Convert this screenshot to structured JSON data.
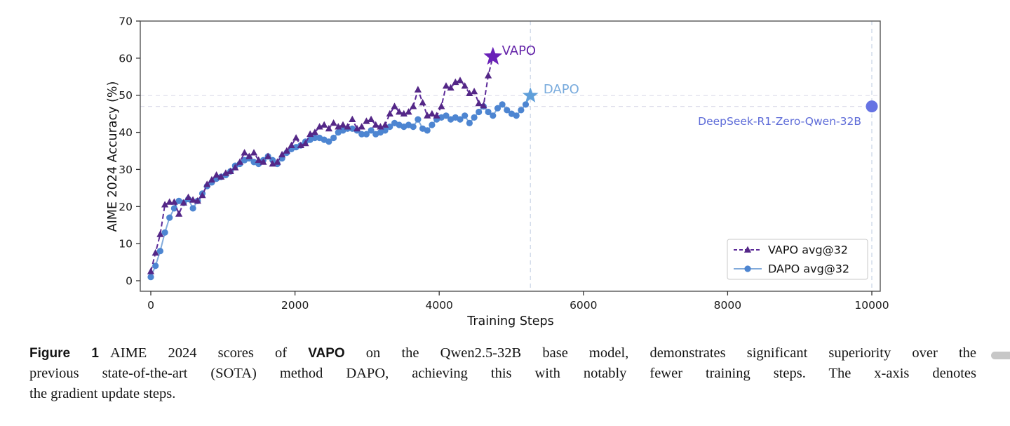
{
  "figure": {
    "caption": {
      "label": "Figure 1",
      "line1_pre": "AIME 2024 scores of ",
      "line1_bold": "VAPO",
      "line1_post": " on the Qwen2.5-32B base model, demonstrates significant superiority over the",
      "line2": "previous state-of-the-art (SOTA) method DAPO, achieving this with notably fewer training steps. The x-axis denotes",
      "line3": "the gradient update steps."
    }
  },
  "chart_data": {
    "type": "line",
    "title": "",
    "xlabel": "Training Steps",
    "ylabel": "AIME 2024 Accuracy (%)",
    "xlim": [
      -146,
      10117
    ],
    "ylim": [
      -2.84,
      70
    ],
    "xticks": [
      0,
      2000,
      4000,
      6000,
      8000,
      10000
    ],
    "yticks": [
      0,
      10,
      20,
      30,
      40,
      50,
      60,
      70
    ],
    "grid": false,
    "colors": {
      "guide_h": "#dcdcea",
      "guide_v": "#c9d4e6",
      "spine": "#555555",
      "tick_label": "#1a1a1a"
    },
    "legend": {
      "position": "lower right",
      "entries": [
        "VAPO avg@32",
        "DAPO avg@32"
      ]
    },
    "series": [
      {
        "id": "dapo",
        "name": "DAPO avg@32",
        "marker": "circle",
        "dashed": false,
        "color": "#4d85d1",
        "line_color": "#82abdb",
        "star": {
          "x": 5265,
          "y": 49.9,
          "size": 12,
          "color": "#5f9fda"
        },
        "points": [
          [
            0,
            1
          ],
          [
            65,
            4
          ],
          [
            130,
            8
          ],
          [
            195,
            13
          ],
          [
            260,
            17
          ],
          [
            325,
            19.5
          ],
          [
            390,
            21.5
          ],
          [
            455,
            21
          ],
          [
            520,
            22
          ],
          [
            585,
            19.5
          ],
          [
            650,
            21.5
          ],
          [
            715,
            23.5
          ],
          [
            780,
            25.5
          ],
          [
            845,
            26.5
          ],
          [
            910,
            27.5
          ],
          [
            975,
            28
          ],
          [
            1040,
            28.5
          ],
          [
            1105,
            29.5
          ],
          [
            1170,
            31
          ],
          [
            1235,
            31.5
          ],
          [
            1300,
            32.5
          ],
          [
            1365,
            33
          ],
          [
            1430,
            32
          ],
          [
            1495,
            31.5
          ],
          [
            1560,
            32.5
          ],
          [
            1625,
            33.5
          ],
          [
            1690,
            32.5
          ],
          [
            1755,
            31.5
          ],
          [
            1820,
            33
          ],
          [
            1885,
            34.5
          ],
          [
            1950,
            35.5
          ],
          [
            2015,
            36
          ],
          [
            2080,
            36.5
          ],
          [
            2145,
            37.5
          ],
          [
            2210,
            38
          ],
          [
            2275,
            38.5
          ],
          [
            2340,
            38.5
          ],
          [
            2405,
            38
          ],
          [
            2470,
            37.5
          ],
          [
            2535,
            38.5
          ],
          [
            2600,
            40
          ],
          [
            2665,
            40.5
          ],
          [
            2730,
            41
          ],
          [
            2795,
            41
          ],
          [
            2860,
            40.5
          ],
          [
            2925,
            39.5
          ],
          [
            2990,
            39.5
          ],
          [
            3055,
            40.5
          ],
          [
            3120,
            39.5
          ],
          [
            3185,
            40
          ],
          [
            3250,
            40.5
          ],
          [
            3315,
            41.5
          ],
          [
            3380,
            42.5
          ],
          [
            3445,
            42
          ],
          [
            3510,
            41.5
          ],
          [
            3575,
            42
          ],
          [
            3640,
            41.5
          ],
          [
            3705,
            43.5
          ],
          [
            3770,
            41
          ],
          [
            3835,
            40.5
          ],
          [
            3900,
            42
          ],
          [
            3965,
            43.5
          ],
          [
            4030,
            44
          ],
          [
            4095,
            44.5
          ],
          [
            4160,
            43.5
          ],
          [
            4225,
            44
          ],
          [
            4290,
            43.5
          ],
          [
            4355,
            44.5
          ],
          [
            4420,
            42.5
          ],
          [
            4485,
            44
          ],
          [
            4550,
            45.5
          ],
          [
            4615,
            47
          ],
          [
            4680,
            45.5
          ],
          [
            4745,
            44.5
          ],
          [
            4810,
            46.5
          ],
          [
            4875,
            47.5
          ],
          [
            4940,
            46
          ],
          [
            5005,
            45
          ],
          [
            5070,
            44.5
          ],
          [
            5135,
            46
          ],
          [
            5200,
            47.5
          ]
        ]
      },
      {
        "id": "vapo",
        "name": "VAPO avg@32",
        "marker": "triangle",
        "dashed": true,
        "color": "#542787",
        "line_color": "#5c2b99",
        "star": {
          "x": 4745,
          "y": 60.4,
          "size": 14,
          "color": "#6a22b8"
        },
        "points": [
          [
            0,
            2.5
          ],
          [
            65,
            7.5
          ],
          [
            130,
            12.5
          ],
          [
            195,
            20.5
          ],
          [
            260,
            21.2
          ],
          [
            325,
            21.2
          ],
          [
            390,
            18
          ],
          [
            455,
            21
          ],
          [
            520,
            22.5
          ],
          [
            585,
            21.8
          ],
          [
            650,
            21.5
          ],
          [
            715,
            23
          ],
          [
            780,
            26
          ],
          [
            845,
            27.2
          ],
          [
            910,
            28.5
          ],
          [
            975,
            28
          ],
          [
            1040,
            29
          ],
          [
            1105,
            29.5
          ],
          [
            1170,
            30.5
          ],
          [
            1235,
            32
          ],
          [
            1300,
            34.5
          ],
          [
            1365,
            33.5
          ],
          [
            1430,
            34.5
          ],
          [
            1495,
            32.5
          ],
          [
            1560,
            32
          ],
          [
            1625,
            33.5
          ],
          [
            1690,
            31.5
          ],
          [
            1755,
            32
          ],
          [
            1820,
            34
          ],
          [
            1885,
            35
          ],
          [
            1950,
            36.5
          ],
          [
            2015,
            38.5
          ],
          [
            2080,
            36.5
          ],
          [
            2145,
            37
          ],
          [
            2210,
            39.5
          ],
          [
            2275,
            40
          ],
          [
            2340,
            41.5
          ],
          [
            2405,
            42
          ],
          [
            2470,
            41
          ],
          [
            2535,
            42.5
          ],
          [
            2600,
            41.5
          ],
          [
            2665,
            42
          ],
          [
            2730,
            41.5
          ],
          [
            2795,
            43.5
          ],
          [
            2860,
            41
          ],
          [
            2925,
            41.5
          ],
          [
            2990,
            43
          ],
          [
            3055,
            43.5
          ],
          [
            3120,
            42
          ],
          [
            3185,
            41.5
          ],
          [
            3250,
            42
          ],
          [
            3315,
            45
          ],
          [
            3380,
            47
          ],
          [
            3445,
            45.5
          ],
          [
            3510,
            45
          ],
          [
            3575,
            45.5
          ],
          [
            3640,
            47
          ],
          [
            3705,
            51.5
          ],
          [
            3770,
            48
          ],
          [
            3835,
            44.5
          ],
          [
            3900,
            45
          ],
          [
            3965,
            44.5
          ],
          [
            4030,
            47
          ],
          [
            4095,
            52.5
          ],
          [
            4160,
            52
          ],
          [
            4225,
            53.5
          ],
          [
            4290,
            54
          ],
          [
            4355,
            52.5
          ],
          [
            4420,
            50.5
          ],
          [
            4485,
            51
          ],
          [
            4550,
            47.8
          ],
          [
            4615,
            47.2
          ],
          [
            4680,
            55.3
          ]
        ]
      }
    ],
    "reference_point": {
      "x": 10000,
      "y": 47.0,
      "r": 8.5,
      "color": "#6673e3",
      "label": "DeepSeek-R1-Zero-Qwen-32B",
      "label_color": "#5e6cd8"
    },
    "annotations": [
      {
        "text": "VAPO",
        "x": 4870,
        "y": 60.9,
        "color": "#6423a8",
        "size": 18,
        "anchor": "start"
      },
      {
        "text": "DAPO",
        "x": 5447,
        "y": 50.5,
        "color": "#79abdd",
        "size": 18,
        "anchor": "start"
      },
      {
        "text": "DeepSeek-R1-Zero-Qwen-32B",
        "x": 9854,
        "y": 42.0,
        "color": "#5e6cd8",
        "size": 15.5,
        "anchor": "end"
      }
    ],
    "guide_lines": {
      "horizontal": [
        49.9,
        47.0
      ],
      "vertical": [
        5265,
        10000
      ]
    }
  }
}
